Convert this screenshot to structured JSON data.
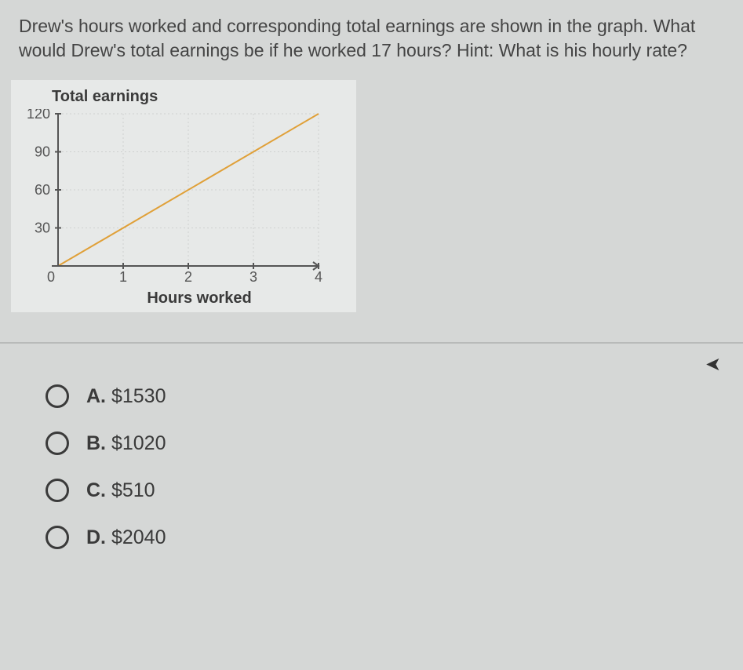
{
  "question_text": "Drew's hours worked and corresponding total earnings are shown in the graph. What would Drew's total earnings be if he worked 17 hours? Hint: What is his hourly rate?",
  "chart": {
    "type": "line",
    "title": "Total earnings",
    "x_axis_label": "Hours worked",
    "background_color": "#e7e9e8",
    "grid_color": "#cfd1d0",
    "axis_color": "#555555",
    "line_color": "#e0a038",
    "line_width": 2,
    "tick_fontsize": 18,
    "label_fontsize": 20,
    "xlim": [
      0,
      4
    ],
    "ylim": [
      0,
      120
    ],
    "x_ticks": [
      0,
      1,
      2,
      3,
      4
    ],
    "y_ticks": [
      30,
      60,
      90,
      120
    ],
    "line_points_xy": [
      [
        0,
        0
      ],
      [
        4,
        120
      ]
    ],
    "x_tick_labels": {
      "0": "0",
      "1": "1",
      "2": "2",
      "3": "3",
      "4": "4"
    },
    "y_tick_labels": {
      "30": "30",
      "60": "60",
      "90": "90",
      "120": "120"
    }
  },
  "options": [
    {
      "letter": "A.",
      "text": "$1530"
    },
    {
      "letter": "B.",
      "text": "$1020"
    },
    {
      "letter": "C.",
      "text": "$510"
    },
    {
      "letter": "D.",
      "text": "$2040"
    }
  ]
}
